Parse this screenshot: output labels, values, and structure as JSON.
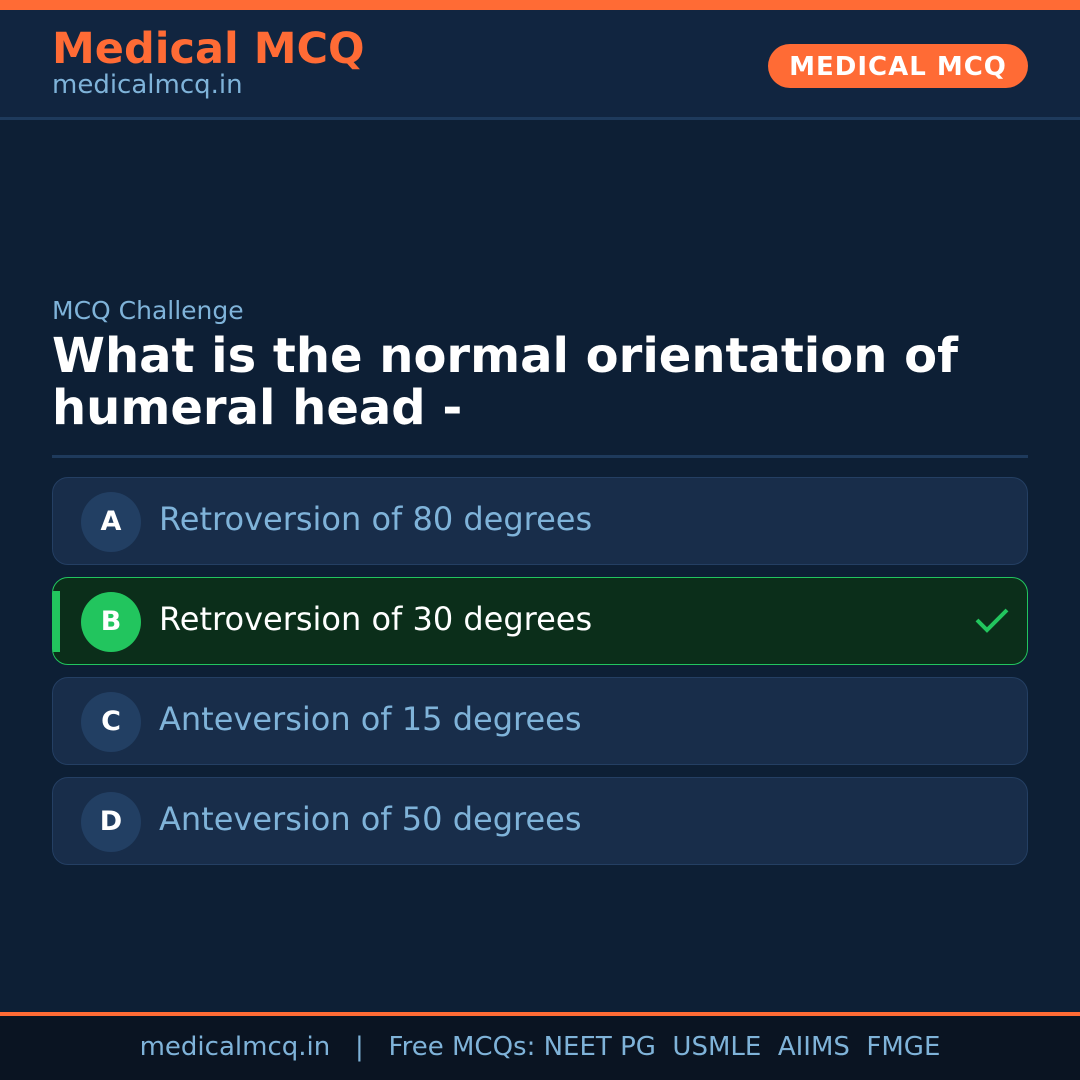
{
  "header": {
    "brand": "Medical MCQ",
    "site": "medicalmcq.in",
    "badge": "MEDICAL MCQ"
  },
  "question": {
    "kicker": "MCQ Challenge",
    "text": "What is the normal orientation of humeral head -"
  },
  "options": [
    {
      "letter": "A",
      "text": "Retroversion of 80 degrees"
    },
    {
      "letter": "B",
      "text": "Retroversion of 30 degrees",
      "correct": true
    },
    {
      "letter": "C",
      "text": "Anteversion of 15 degrees"
    },
    {
      "letter": "D",
      "text": "Anteversion of 50 degrees"
    }
  ],
  "footer": {
    "text": "medicalmcq.in   |   Free MCQs: NEET PG  USMLE  AIIMS  FMGE"
  },
  "colors": {
    "accent": "#ff6b35",
    "correct": "#22c55e",
    "background": "#0d1f35"
  }
}
